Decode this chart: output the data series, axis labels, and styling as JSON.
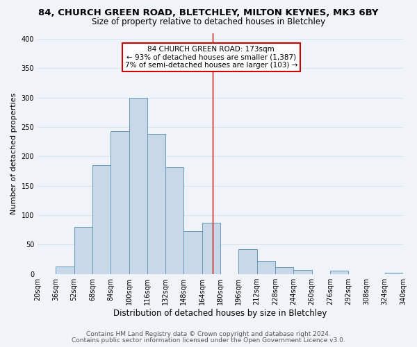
{
  "title1": "84, CHURCH GREEN ROAD, BLETCHLEY, MILTON KEYNES, MK3 6BY",
  "title2": "Size of property relative to detached houses in Bletchley",
  "xlabel": "Distribution of detached houses by size in Bletchley",
  "ylabel": "Number of detached properties",
  "footer1": "Contains HM Land Registry data © Crown copyright and database right 2024.",
  "footer2": "Contains public sector information licensed under the Open Government Licence v3.0.",
  "bin_labels": [
    "20sqm",
    "36sqm",
    "52sqm",
    "68sqm",
    "84sqm",
    "100sqm",
    "116sqm",
    "132sqm",
    "148sqm",
    "164sqm",
    "180sqm",
    "196sqm",
    "212sqm",
    "228sqm",
    "244sqm",
    "260sqm",
    "276sqm",
    "292sqm",
    "308sqm",
    "324sqm",
    "340sqm"
  ],
  "bar_values": [
    0,
    13,
    80,
    185,
    243,
    300,
    238,
    181,
    73,
    87,
    0,
    42,
    22,
    12,
    7,
    0,
    5,
    0,
    0,
    2
  ],
  "bin_edges": [
    20,
    36,
    52,
    68,
    84,
    100,
    116,
    132,
    148,
    164,
    180,
    196,
    212,
    228,
    244,
    260,
    276,
    292,
    308,
    324,
    340
  ],
  "bar_color": "#c8d8e8",
  "bar_edge_color": "#6699bb",
  "property_line_x": 173,
  "annotation_title": "84 CHURCH GREEN ROAD: 173sqm",
  "annotation_line1": "← 93% of detached houses are smaller (1,387)",
  "annotation_line2": "7% of semi-detached houses are larger (103) →",
  "annotation_box_color": "#ffffff",
  "annotation_box_edge_color": "#cc0000",
  "vline_color": "#cc0000",
  "ylim": [
    0,
    410
  ],
  "yticks": [
    0,
    50,
    100,
    150,
    200,
    250,
    300,
    350,
    400
  ],
  "bg_color": "#f0f4f8",
  "grid_color": "#d8e4f0",
  "title1_fontsize": 9.5,
  "title2_fontsize": 8.5,
  "xlabel_fontsize": 8.5,
  "ylabel_fontsize": 8,
  "tick_fontsize": 7,
  "annotation_fontsize": 7.5,
  "footer_fontsize": 6.5
}
